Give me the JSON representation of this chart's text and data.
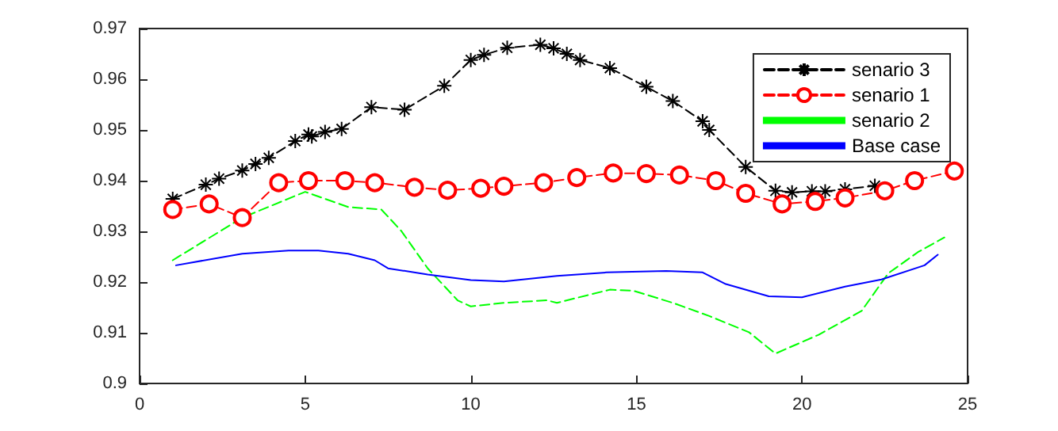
{
  "chart_data": {
    "type": "line",
    "xlim": [
      0,
      25
    ],
    "xticks": [
      0,
      5,
      10,
      15,
      20,
      25
    ],
    "ylim": [
      0.9,
      0.97
    ],
    "yticks": [
      0.9,
      0.91,
      0.92,
      0.93,
      0.94,
      0.95,
      0.96,
      0.97
    ],
    "grid": false,
    "legend": "top right",
    "series": [
      {
        "name": "senario 3",
        "color": "#000000",
        "marker": "star",
        "line_style": "dashed",
        "x": [
          1,
          2,
          2.4,
          3.1,
          3.5,
          3.9,
          4.7,
          5.1,
          5.2,
          5.6,
          6.1,
          7,
          8,
          9.2,
          10,
          10.4,
          11.1,
          12.1,
          12.5,
          12.9,
          13.3,
          14.2,
          15.3,
          16.1,
          17,
          17.2,
          18.3,
          19.2,
          19.7,
          20.3,
          20.7,
          21.3,
          22.2
        ],
        "values": [
          0.9364,
          0.9392,
          0.9404,
          0.942,
          0.9433,
          0.9445,
          0.9478,
          0.9491,
          0.9487,
          0.9496,
          0.9502,
          0.9545,
          0.954,
          0.9587,
          0.9638,
          0.9648,
          0.9662,
          0.9668,
          0.9661,
          0.965,
          0.9638,
          0.9622,
          0.9585,
          0.9557,
          0.9517,
          0.95,
          0.9427,
          0.938,
          0.9377,
          0.9379,
          0.9379,
          0.9383,
          0.939
        ]
      },
      {
        "name": "senario 1",
        "color": "#ff0000",
        "marker": "circle",
        "line_style": "dashed",
        "x": [
          1,
          2.1,
          3.1,
          4.2,
          5.1,
          6.2,
          7.1,
          8.3,
          9.3,
          10.3,
          11,
          12.2,
          13.2,
          14.3,
          15.3,
          16.3,
          17.4,
          18.3,
          19.4,
          20.4,
          21.3,
          22.5,
          23.4,
          24.6
        ],
        "values": [
          0.9343,
          0.9354,
          0.9327,
          0.9396,
          0.94,
          0.94,
          0.9396,
          0.9387,
          0.9381,
          0.9385,
          0.9389,
          0.9396,
          0.9406,
          0.9415,
          0.9414,
          0.9411,
          0.94,
          0.9375,
          0.9354,
          0.9359,
          0.9366,
          0.938,
          0.94,
          0.9419
        ]
      },
      {
        "name": "senario 2",
        "color": "#00ff00",
        "marker": "none",
        "line_style": "dashed",
        "x": [
          1,
          3.1,
          5,
          6.3,
          7.3,
          7.9,
          8.7,
          9.6,
          10,
          11,
          12.3,
          12.6,
          14.2,
          14.9,
          16.1,
          17.2,
          18.4,
          19.2,
          20.5,
          21.8,
          22.6,
          23.5,
          24.3
        ],
        "values": [
          0.9243,
          0.9327,
          0.9378,
          0.9348,
          0.9343,
          0.9301,
          0.9227,
          0.9164,
          0.9152,
          0.9159,
          0.9164,
          0.9159,
          0.9185,
          0.9183,
          0.9159,
          0.9133,
          0.9101,
          0.9059,
          0.9096,
          0.9143,
          0.9217,
          0.9259,
          0.9288
        ]
      },
      {
        "name": "Base case",
        "color": "#0000ff",
        "marker": "none",
        "line_style": "solid",
        "x": [
          1.1,
          3.1,
          4.5,
          5.4,
          6.3,
          7.1,
          7.5,
          8.7,
          10,
          11,
          12.6,
          14.1,
          15.9,
          17,
          17.7,
          19,
          20,
          21.3,
          22.4,
          23.7,
          24.1
        ],
        "values": [
          0.9233,
          0.9256,
          0.9262,
          0.9262,
          0.9256,
          0.9243,
          0.9227,
          0.9215,
          0.9204,
          0.9201,
          0.9212,
          0.9219,
          0.9222,
          0.9219,
          0.9196,
          0.9172,
          0.917,
          0.9191,
          0.9205,
          0.9233,
          0.9254
        ]
      }
    ]
  }
}
